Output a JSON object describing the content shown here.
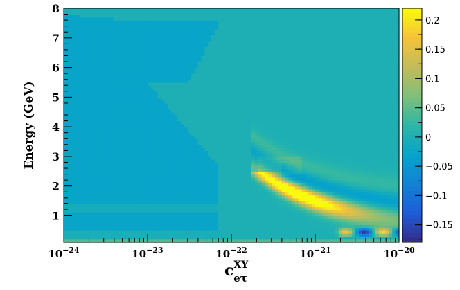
{
  "chart_data": {
    "type": "heatmap",
    "title": "",
    "xlabel": "c",
    "xlabel_sup": "XY",
    "xlabel_sub": "eτ",
    "ylabel": "Energy (GeV)",
    "x_scale": "log",
    "xlim": [
      1e-24,
      1e-20
    ],
    "ylim": [
      0.1,
      8.0
    ],
    "zlim": [
      -0.18,
      0.22
    ],
    "x_ticks": [
      {
        "value": 1e-24,
        "base": "10",
        "exp": "−24"
      },
      {
        "value": 1e-23,
        "base": "10",
        "exp": "−23"
      },
      {
        "value": 1e-22,
        "base": "10",
        "exp": "−22"
      },
      {
        "value": 1e-21,
        "base": "10",
        "exp": "−21"
      },
      {
        "value": 1e-20,
        "base": "10",
        "exp": "−20"
      }
    ],
    "y_ticks": [
      {
        "value": 1,
        "label": "1"
      },
      {
        "value": 2,
        "label": "2"
      },
      {
        "value": 3,
        "label": "3"
      },
      {
        "value": 4,
        "label": "4"
      },
      {
        "value": 5,
        "label": "5"
      },
      {
        "value": 6,
        "label": "6"
      },
      {
        "value": 7,
        "label": "7"
      },
      {
        "value": 8,
        "label": "8"
      }
    ],
    "z_ticks": [
      {
        "value": 0.2,
        "label": "0.2"
      },
      {
        "value": 0.15,
        "label": "0.15"
      },
      {
        "value": 0.1,
        "label": "0.1"
      },
      {
        "value": 0.05,
        "label": "0.05"
      },
      {
        "value": 0,
        "label": "0"
      },
      {
        "value": -0.05,
        "label": "−0.05"
      },
      {
        "value": -0.1,
        "label": "−0.1"
      },
      {
        "value": -0.15,
        "label": "−0.15"
      }
    ],
    "colormap": [
      "#352a87",
      "#1f5cd8",
      "#1282d4",
      "#06a4ca",
      "#2eb7a6",
      "#7fbf7b",
      "#c3bc5b",
      "#f5c23a",
      "#f9fb0e"
    ],
    "grid": {
      "log10_x_min": -24,
      "log10_x_max": -20,
      "nx": 100,
      "y_min": 0.1,
      "y_max": 8.0,
      "ny": 79
    },
    "description_of_values": "difference map; background ~0, blue depletion region at low c and E below ~7.8 GeV, yellow/blue oscillation bands for c > 2e-22 at E < 2 GeV"
  }
}
